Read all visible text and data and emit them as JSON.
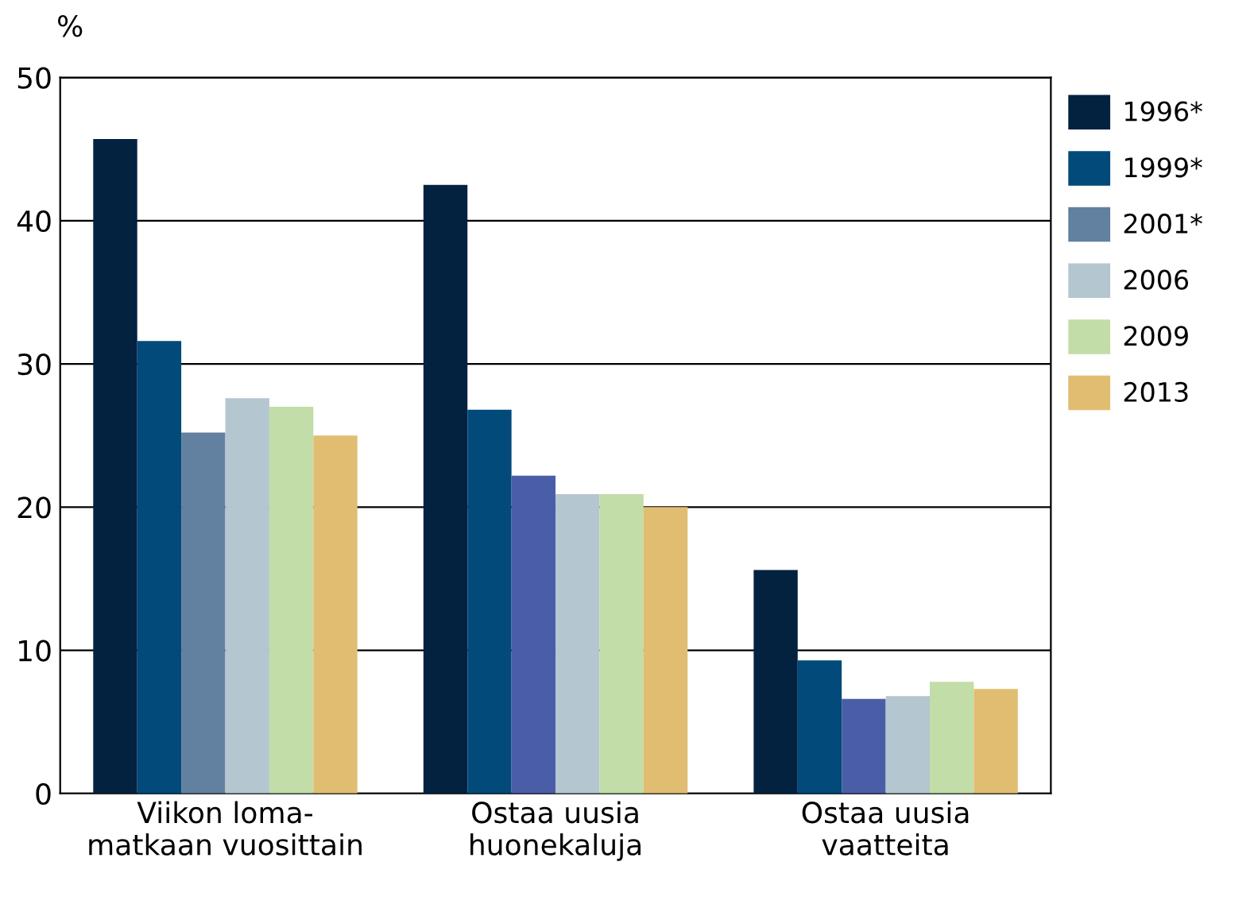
{
  "chart_data": {
    "type": "bar",
    "ylabel": "%",
    "categories": [
      "Viikon loma-\nmatkaan vuosittain",
      "Ostaa uusia\nhuonekaluja",
      "Ostaa uusia\nvaatteita"
    ],
    "series": [
      {
        "name": "1996*",
        "color": "#022240",
        "values": [
          45.7,
          42.5,
          15.6
        ]
      },
      {
        "name": "1999*",
        "color": "#014a7a",
        "values": [
          31.6,
          26.8,
          9.3
        ]
      },
      {
        "name": "2001*",
        "color": "#62809f",
        "colors": [
          "#62809f",
          "#4a5ea8",
          "#4a5ea8"
        ],
        "values": [
          25.2,
          22.2,
          6.6
        ]
      },
      {
        "name": "2006",
        "color": "#b4c6cf",
        "values": [
          27.6,
          20.9,
          6.8
        ]
      },
      {
        "name": "2009",
        "color": "#c2dda8",
        "values": [
          27.0,
          20.9,
          7.8
        ]
      },
      {
        "name": "2013",
        "color": "#e1bd72",
        "values": [
          25.0,
          20.0,
          7.3
        ]
      }
    ],
    "ylim": [
      0,
      50
    ],
    "yticks": [
      0,
      10,
      20,
      30,
      40,
      50
    ],
    "grid": "y",
    "legend": "right"
  }
}
